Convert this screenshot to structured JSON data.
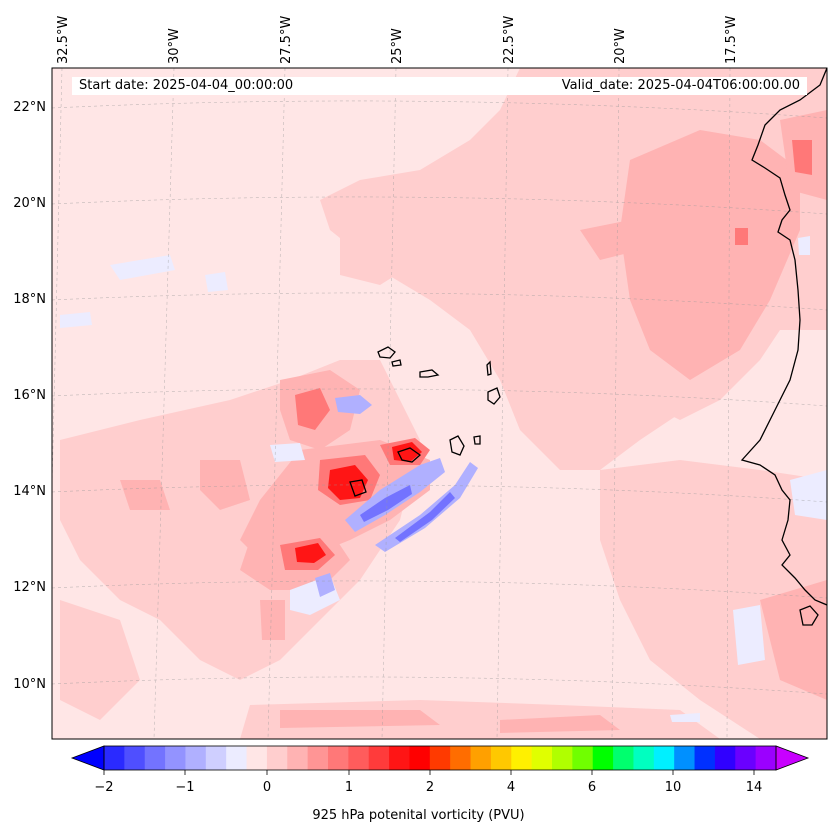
{
  "header": {
    "start_date": "Start date: 2025-04-04_00:00:00",
    "valid_date": "Valid_date: 2025-04-04T06:00:00.00"
  },
  "map": {
    "projection": "conic",
    "lon_ticks": [
      "32.5°W",
      "30°W",
      "27.5°W",
      "25°W",
      "22.5°W",
      "20°W",
      "17.5°W"
    ],
    "lat_ticks": [
      "22°N",
      "20°N",
      "18°N",
      "16°N",
      "14°N",
      "12°N",
      "10°N"
    ],
    "field": "925 hPa potential vorticity",
    "gridlines": true
  },
  "colorbar": {
    "label": "925 hPa potenital vorticity (PVU)",
    "tick_labels": [
      "−2",
      "−1",
      "0",
      "1",
      "2",
      "4",
      "6",
      "10",
      "14"
    ],
    "extend": "both",
    "colors": [
      "#0000ff",
      "#2a2aff",
      "#4f4fff",
      "#7373ff",
      "#9393ff",
      "#b0b0ff",
      "#cfcfff",
      "#ececff",
      "#ffe6e6",
      "#ffcece",
      "#ffb3b3",
      "#ff9595",
      "#ff7878",
      "#ff5c5c",
      "#ff3b3b",
      "#ff1515",
      "#ff0000",
      "#ff3a00",
      "#ff6d00",
      "#ffa000",
      "#ffc800",
      "#fff000",
      "#e0ff00",
      "#b0ff00",
      "#70ff00",
      "#00ff00",
      "#00ff6e",
      "#00ffc0",
      "#00f0ff",
      "#0090ff",
      "#0030ff",
      "#3000ff",
      "#6a00ff",
      "#9b00ff",
      "#c800ff"
    ]
  },
  "colors": {
    "background_field": "#ffe6e6",
    "light_pink": "#ffcece",
    "pink": "#ffb3b3",
    "red": "#ff1515",
    "light_blue": "#ececff",
    "blue": "#7373ff",
    "coastline": "#000000"
  }
}
